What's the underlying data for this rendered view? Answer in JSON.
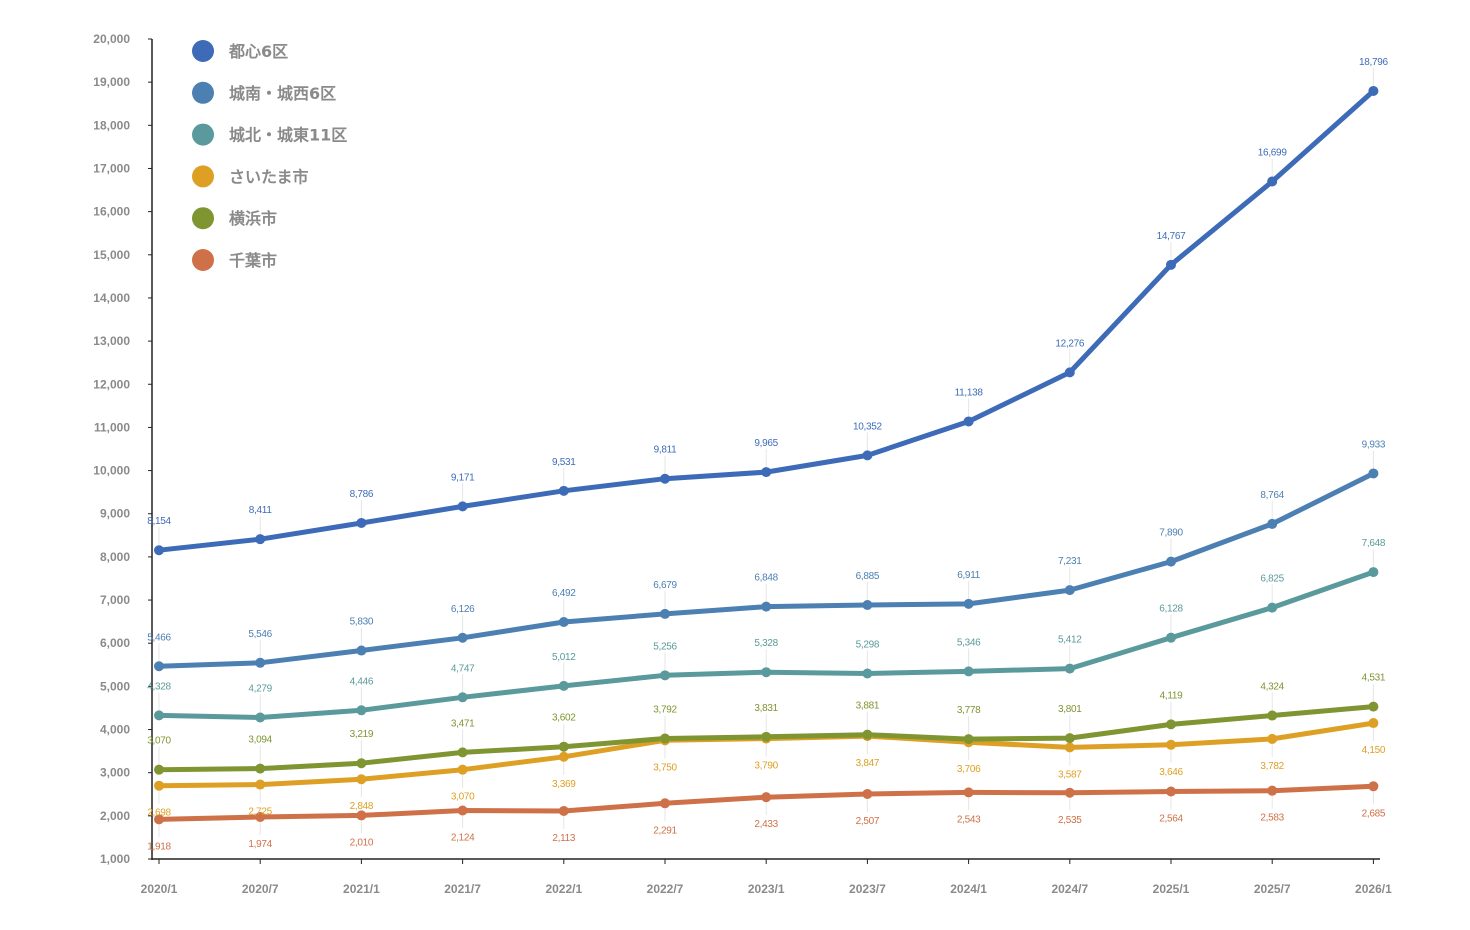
{
  "chart_data": {
    "type": "line",
    "title": "",
    "xlabel": "",
    "ylabel": "",
    "ylim": [
      1000,
      20000
    ],
    "y_ticks": [
      "1,000",
      "2,000",
      "3,000",
      "4,000",
      "5,000",
      "6,000",
      "7,000",
      "8,000",
      "9,000",
      "10,000",
      "11,000",
      "12,000",
      "13,000",
      "14,000",
      "15,000",
      "16,000",
      "17,000",
      "18,000",
      "19,000",
      "20,000"
    ],
    "y_tick_values": [
      1000,
      2000,
      3000,
      4000,
      5000,
      6000,
      7000,
      8000,
      9000,
      10000,
      11000,
      12000,
      13000,
      14000,
      15000,
      16000,
      17000,
      18000,
      19000,
      20000
    ],
    "categories": [
      "2020/1",
      "2020/7",
      "2021/1",
      "2021/7",
      "2022/1",
      "2022/7",
      "2023/1",
      "2023/7",
      "2024/1",
      "2024/7",
      "2025/1",
      "2025/7",
      "2026/1"
    ],
    "legend_position": "top-left",
    "grid": false,
    "series": [
      {
        "name": "都心6区",
        "color": "#3d6bb8",
        "label_position": "above",
        "values": [
          8154,
          8411,
          8786,
          9171,
          9531,
          9811,
          9965,
          10352,
          11138,
          12276,
          14767,
          16699,
          18796
        ],
        "labels": [
          "8,154",
          "8,411",
          "8,786",
          "9,171",
          "9,531",
          "9,811",
          "9,965",
          "10,352",
          "11,138",
          "12,276",
          "14,767",
          "16,699",
          "18,796"
        ]
      },
      {
        "name": "城南・城西6区",
        "color": "#4c7fb2",
        "label_position": "above",
        "values": [
          5466,
          5546,
          5830,
          6126,
          6492,
          6679,
          6848,
          6885,
          6911,
          7231,
          7890,
          8764,
          9933
        ],
        "labels": [
          "5,466",
          "5,546",
          "5,830",
          "6,126",
          "6,492",
          "6,679",
          "6,848",
          "6,885",
          "6,911",
          "7,231",
          "7,890",
          "8,764",
          "9,933"
        ]
      },
      {
        "name": "城北・城東11区",
        "color": "#5b9a9c",
        "label_position": "above",
        "values": [
          4328,
          4279,
          4446,
          4747,
          5012,
          5256,
          5328,
          5298,
          5346,
          5412,
          6128,
          6825,
          7648
        ],
        "labels": [
          "4,328",
          "4,279",
          "4,446",
          "4,747",
          "5,012",
          "5,256",
          "5,328",
          "5,298",
          "5,346",
          "5,412",
          "6,128",
          "6,825",
          "7,648"
        ]
      },
      {
        "name": "さいたま市",
        "color": "#dda024",
        "label_position": "below",
        "values": [
          2698,
          2725,
          2848,
          3070,
          3369,
          3750,
          3790,
          3847,
          3706,
          3587,
          3646,
          3782,
          4150
        ],
        "labels": [
          "2,698",
          "2,725",
          "2,848",
          "3,070",
          "3,369",
          "3,750",
          "3,790",
          "3,847",
          "3,706",
          "3,587",
          "3,646",
          "3,782",
          "4,150"
        ]
      },
      {
        "name": "横浜市",
        "color": "#7e9532",
        "label_position": "above",
        "values": [
          3070,
          3094,
          3219,
          3471,
          3602,
          3792,
          3831,
          3881,
          3778,
          3801,
          4119,
          4324,
          4531
        ],
        "labels": [
          "3,070",
          "3,094",
          "3,219",
          "3,471",
          "3,602",
          "3,792",
          "3,831",
          "3,881",
          "3,778",
          "3,801",
          "4,119",
          "4,324",
          "4,531"
        ]
      },
      {
        "name": "千葉市",
        "color": "#cf7148",
        "label_position": "below",
        "values": [
          1918,
          1974,
          2010,
          2124,
          2113,
          2291,
          2433,
          2507,
          2543,
          2535,
          2564,
          2583,
          2685
        ],
        "labels": [
          "1,918",
          "1,974",
          "2,010",
          "2,124",
          "2,113",
          "2,291",
          "2,433",
          "2,507",
          "2,543",
          "2,535",
          "2,564",
          "2,583",
          "2,685"
        ]
      }
    ]
  }
}
